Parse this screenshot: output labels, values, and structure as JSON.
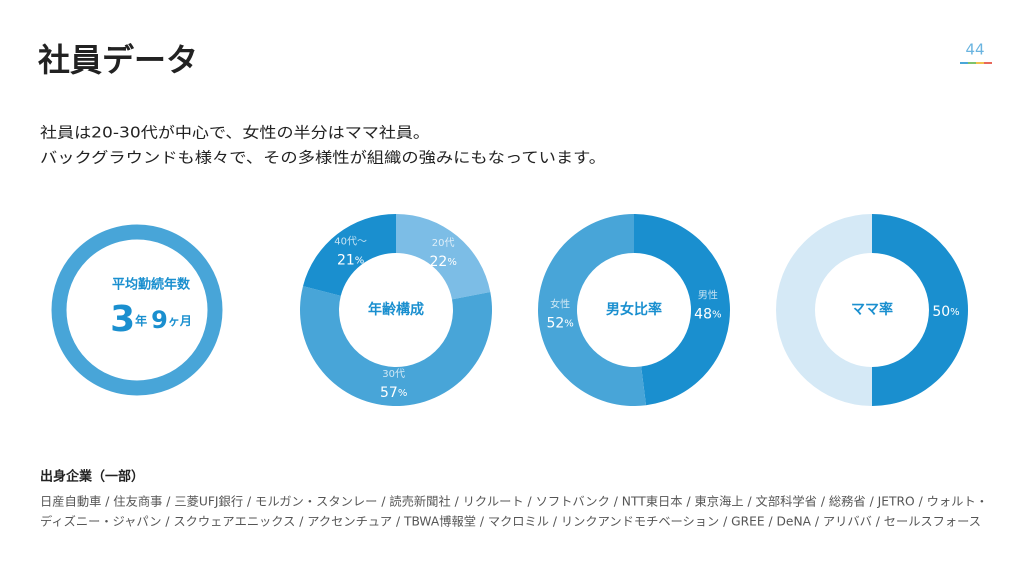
{
  "header": {
    "title": "社員データ",
    "page_number": 44
  },
  "intro": [
    "社員は20-30代が中心で、女性の半分はママ社員。",
    "バックグラウンドも様々で、その多様性が組織の強みにもなっています。"
  ],
  "tenure": {
    "label": "平均勤続年数",
    "years": 3,
    "years_unit": "年",
    "months": 9,
    "months_unit": "ヶ月"
  },
  "chart_data": [
    {
      "type": "donut",
      "title": "年齢構成",
      "categories": [
        "20代",
        "30代",
        "40代〜"
      ],
      "values": [
        22,
        57,
        21
      ],
      "colors": [
        "#7cbde6",
        "#48a5d8",
        "#1a8fcf"
      ],
      "unit": "%",
      "scale": [
        0,
        100
      ]
    },
    {
      "type": "donut",
      "title": "男女比率",
      "categories": [
        "男性",
        "女性"
      ],
      "values": [
        48,
        52
      ],
      "colors": [
        "#1a8fcf",
        "#48a5d8"
      ],
      "unit": "%",
      "scale": [
        0,
        100
      ]
    },
    {
      "type": "donut",
      "title": "ママ率",
      "values": [
        50
      ],
      "colors": [
        "#1a8fcf"
      ],
      "track_color": "#d5e9f6",
      "unit": "%",
      "scale": [
        0,
        100
      ]
    }
  ],
  "companies": {
    "heading": "出身企業（一部）",
    "lines": [
      "日産自動車 / 住友商事 / 三菱UFJ銀行 / モルガン・スタンレー / 読売新聞社 / リクルート / ソフトバンク / NTT東日本 / 東京海上 / 文部科学省 / 総務省 / JETRO / ウォルト・",
      "ディズニー・ジャパン / スクウェアエニックス / アクセンチュア / TBWA博報堂 / マクロミル / リンクアンドモチベーション / GREE / DeNA / アリババ / セールスフォース"
    ]
  }
}
